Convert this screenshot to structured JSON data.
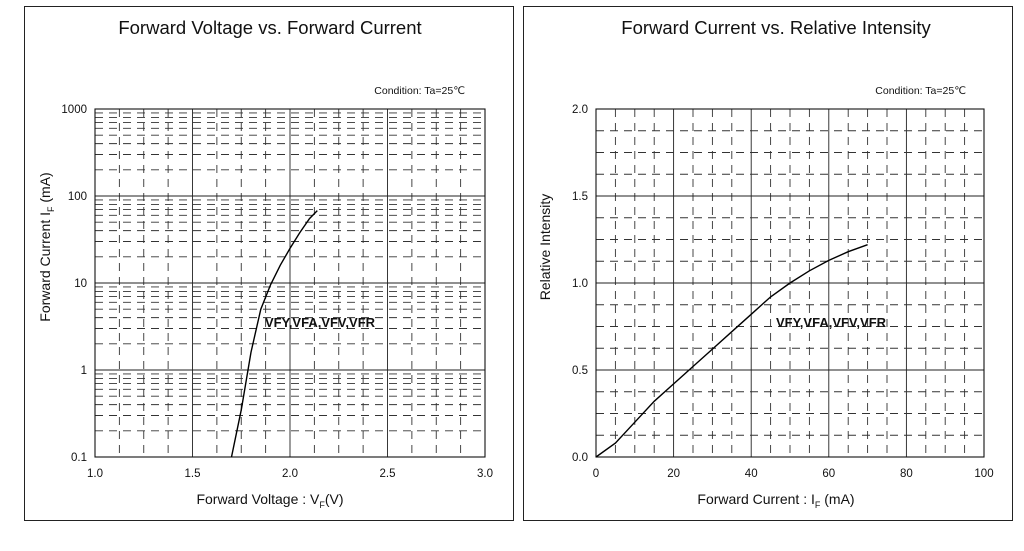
{
  "chart_data": [
    {
      "type": "line",
      "title": "Forward Voltage vs. Forward Current",
      "condition": "Condition: Ta=25℃",
      "xlabel": "Forward Voltage : V",
      "xlabel_sub": "F",
      "xlabel_suffix": "(V)",
      "ylabel": "Forward Current  I",
      "ylabel_sub": "F",
      "ylabel_suffix": " (mA)",
      "x_scale": "linear",
      "y_scale": "log",
      "xlim": [
        1.0,
        3.0
      ],
      "ylim": [
        0.1,
        1000
      ],
      "x_ticks": [
        "1.0",
        "1.5",
        "2.0",
        "2.5",
        "3.0"
      ],
      "y_ticks": [
        "0.1",
        "1",
        "10",
        "100",
        "1000"
      ],
      "grid": true,
      "series": [
        {
          "name": "VFY,VFA,VFV,VFR",
          "x": [
            1.7,
            1.75,
            1.8,
            1.85,
            1.9,
            1.95,
            2.0,
            2.05,
            2.1,
            2.14
          ],
          "y": [
            0.1,
            0.35,
            1.6,
            5.0,
            9.5,
            16,
            25,
            38,
            55,
            68
          ]
        }
      ]
    },
    {
      "type": "line",
      "title": "Forward Current vs. Relative Intensity",
      "condition": "Condition: Ta=25℃",
      "xlabel": "Forward Current : I",
      "xlabel_sub": "F",
      "xlabel_suffix": " (mA)",
      "ylabel": "Relative Intensity",
      "x_scale": "linear",
      "y_scale": "linear",
      "xlim": [
        0,
        100
      ],
      "ylim": [
        0,
        2.0
      ],
      "x_ticks": [
        "0",
        "20",
        "40",
        "60",
        "80",
        "100"
      ],
      "y_ticks": [
        "0.0",
        "0.5",
        "1.0",
        "1.5",
        "2.0"
      ],
      "grid": true,
      "series": [
        {
          "name": "VFY,VFA,VFV,VFR",
          "x": [
            0,
            5,
            10,
            15,
            20,
            25,
            30,
            35,
            40,
            45,
            50,
            55,
            60,
            65,
            70
          ],
          "y": [
            0,
            0.08,
            0.2,
            0.32,
            0.42,
            0.52,
            0.62,
            0.72,
            0.82,
            0.92,
            1.0,
            1.07,
            1.13,
            1.18,
            1.22
          ]
        }
      ]
    }
  ]
}
